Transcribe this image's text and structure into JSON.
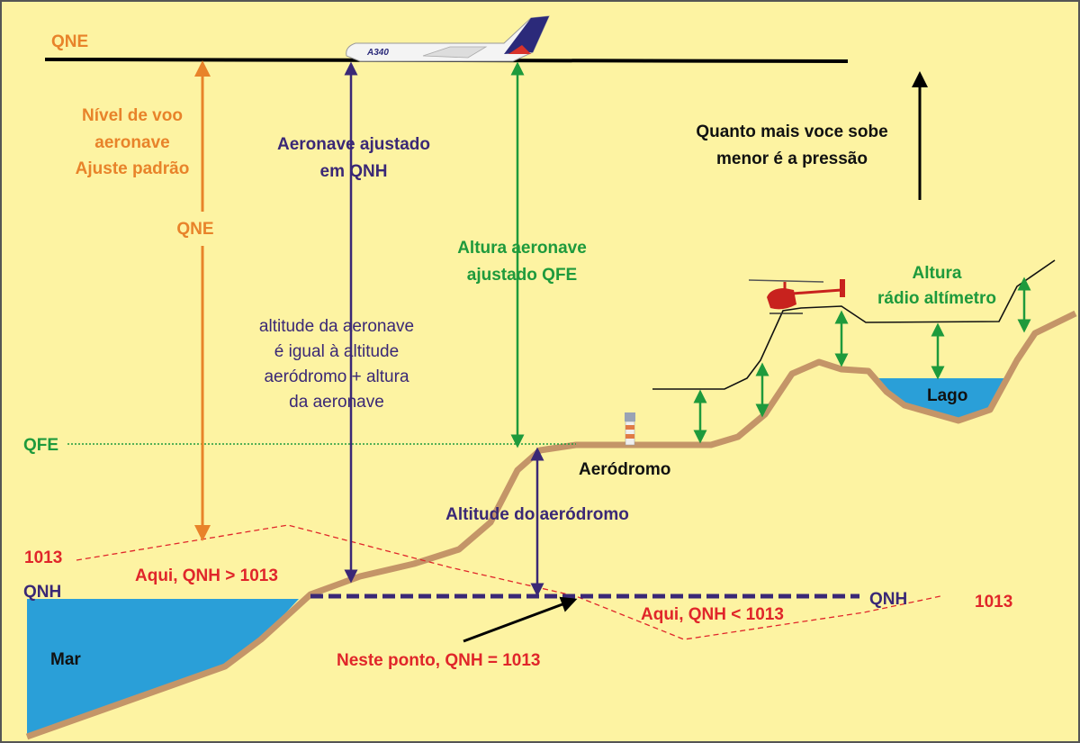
{
  "colors": {
    "background": "#fdf3a2",
    "qne_orange": "#e8832a",
    "qnh_purple": "#3a2876",
    "qfe_green": "#1e9a3c",
    "pressure_red": "#e0262a",
    "terrain": "#c49568",
    "water": "#2a9fd8"
  },
  "labels": {
    "qne_top": "QNE",
    "qne_flight_level": [
      "Nível de voo",
      "aeronave",
      "Ajuste padrão"
    ],
    "qne_arrow": "QNE",
    "qnh_setting": [
      "Aeronave ajustado",
      "em QNH"
    ],
    "altitude_explanation": [
      "altitude da aeronave",
      "é igual à altitude",
      "aeródromo + altura",
      "da aeronave"
    ],
    "qfe_height": [
      "Altura aeronave",
      "ajustado QFE"
    ],
    "pressure_note": [
      "Quanto mais voce sobe",
      "menor é a pressão"
    ],
    "radio_altimeter": [
      "Altura",
      "rádio altímetro"
    ],
    "lake": "Lago",
    "qfe_left": "QFE",
    "aerodrome": "Aeródromo",
    "aerodrome_altitude": "Altitude do aeródromo",
    "left_1013": "1013",
    "qnh_greater": "Aqui, QNH > 1013",
    "qnh_left": "QNH",
    "qnh_right": "QNH",
    "right_1013": "1013",
    "qnh_less": "Aqui, QNH < 1013",
    "sea": "Mar",
    "qnh_equal": "Neste ponto, QNH = 1013",
    "aircraft_model": "A340"
  }
}
